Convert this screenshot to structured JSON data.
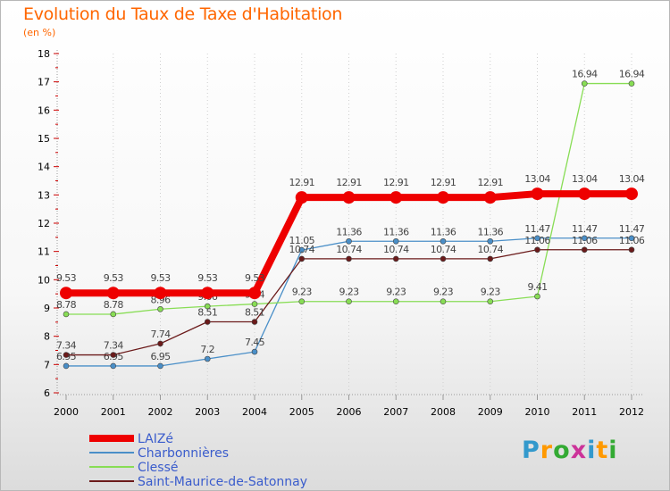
{
  "title": "Evolution du Taux de Taxe d'Habitation",
  "subtitle": "(en %)",
  "logo": {
    "letters": [
      "P",
      "r",
      "o",
      "x",
      "i",
      "t",
      "i"
    ],
    "colors": [
      "#3399cc",
      "#ff9900",
      "#33aa33",
      "#cc3399",
      "#3399cc",
      "#ff9900",
      "#33aa33"
    ]
  },
  "chart_data": {
    "type": "line",
    "x": [
      "2000",
      "2001",
      "2002",
      "2003",
      "2004",
      "2005",
      "2006",
      "2007",
      "2008",
      "2009",
      "2010",
      "2011",
      "2012"
    ],
    "ylim": [
      6,
      18
    ],
    "yticks": [
      "6",
      "7",
      "8",
      "9",
      "10",
      "11",
      "12",
      "13",
      "14",
      "15",
      "16",
      "17",
      "18"
    ],
    "grid": "vertical dotted",
    "legend_position": "bottom-left",
    "series": [
      {
        "name": "Charbonnières",
        "color": "#4a8fc8",
        "values": [
          6.95,
          6.95,
          6.95,
          7.2,
          7.45,
          11.05,
          11.36,
          11.36,
          11.36,
          11.36,
          11.47,
          11.47,
          11.47
        ],
        "labels": [
          "6.95",
          "6.95",
          "6.95",
          "7.2",
          "7.45",
          "11.05",
          "11.36",
          "11.36",
          "11.36",
          "11.36",
          "11.47",
          "11.47",
          "11.47"
        ]
      },
      {
        "name": "Clessé",
        "color": "#88dd55",
        "values": [
          8.78,
          8.78,
          8.96,
          9.06,
          9.14,
          9.23,
          9.23,
          9.23,
          9.23,
          9.23,
          9.41,
          16.94,
          16.94
        ],
        "labels": [
          "8.78",
          "8.78",
          "8.96",
          "9.06",
          "9.14",
          "9.23",
          "9.23",
          "9.23",
          "9.23",
          "9.23",
          "9.41",
          "16.94",
          "16.94"
        ]
      },
      {
        "name": "Saint-Maurice-de-Satonnay",
        "color": "#6b1a1a",
        "values": [
          7.34,
          7.34,
          7.74,
          8.51,
          8.51,
          10.74,
          10.74,
          10.74,
          10.74,
          10.74,
          11.06,
          11.06,
          11.06
        ],
        "labels": [
          "7.34",
          "7.34",
          "7.74",
          "8.51",
          "8.51",
          "10.74",
          "10.74",
          "10.74",
          "10.74",
          "10.74",
          "11.06",
          "11.06",
          "11.06"
        ]
      },
      {
        "name": "LAIZé",
        "color": "#ee0000",
        "values": [
          9.53,
          9.53,
          9.53,
          9.53,
          9.53,
          12.91,
          12.91,
          12.91,
          12.91,
          12.91,
          13.04,
          13.04,
          13.04
        ],
        "labels": [
          "9.53",
          "9.53",
          "9.53",
          "9.53",
          "9.53",
          "12.91",
          "12.91",
          "12.91",
          "12.91",
          "12.91",
          "13.04",
          "13.04",
          "13.04"
        ]
      }
    ],
    "legend": [
      "LAIZé",
      "Charbonnières",
      "Clessé",
      "Saint-Maurice-de-Satonnay"
    ]
  }
}
